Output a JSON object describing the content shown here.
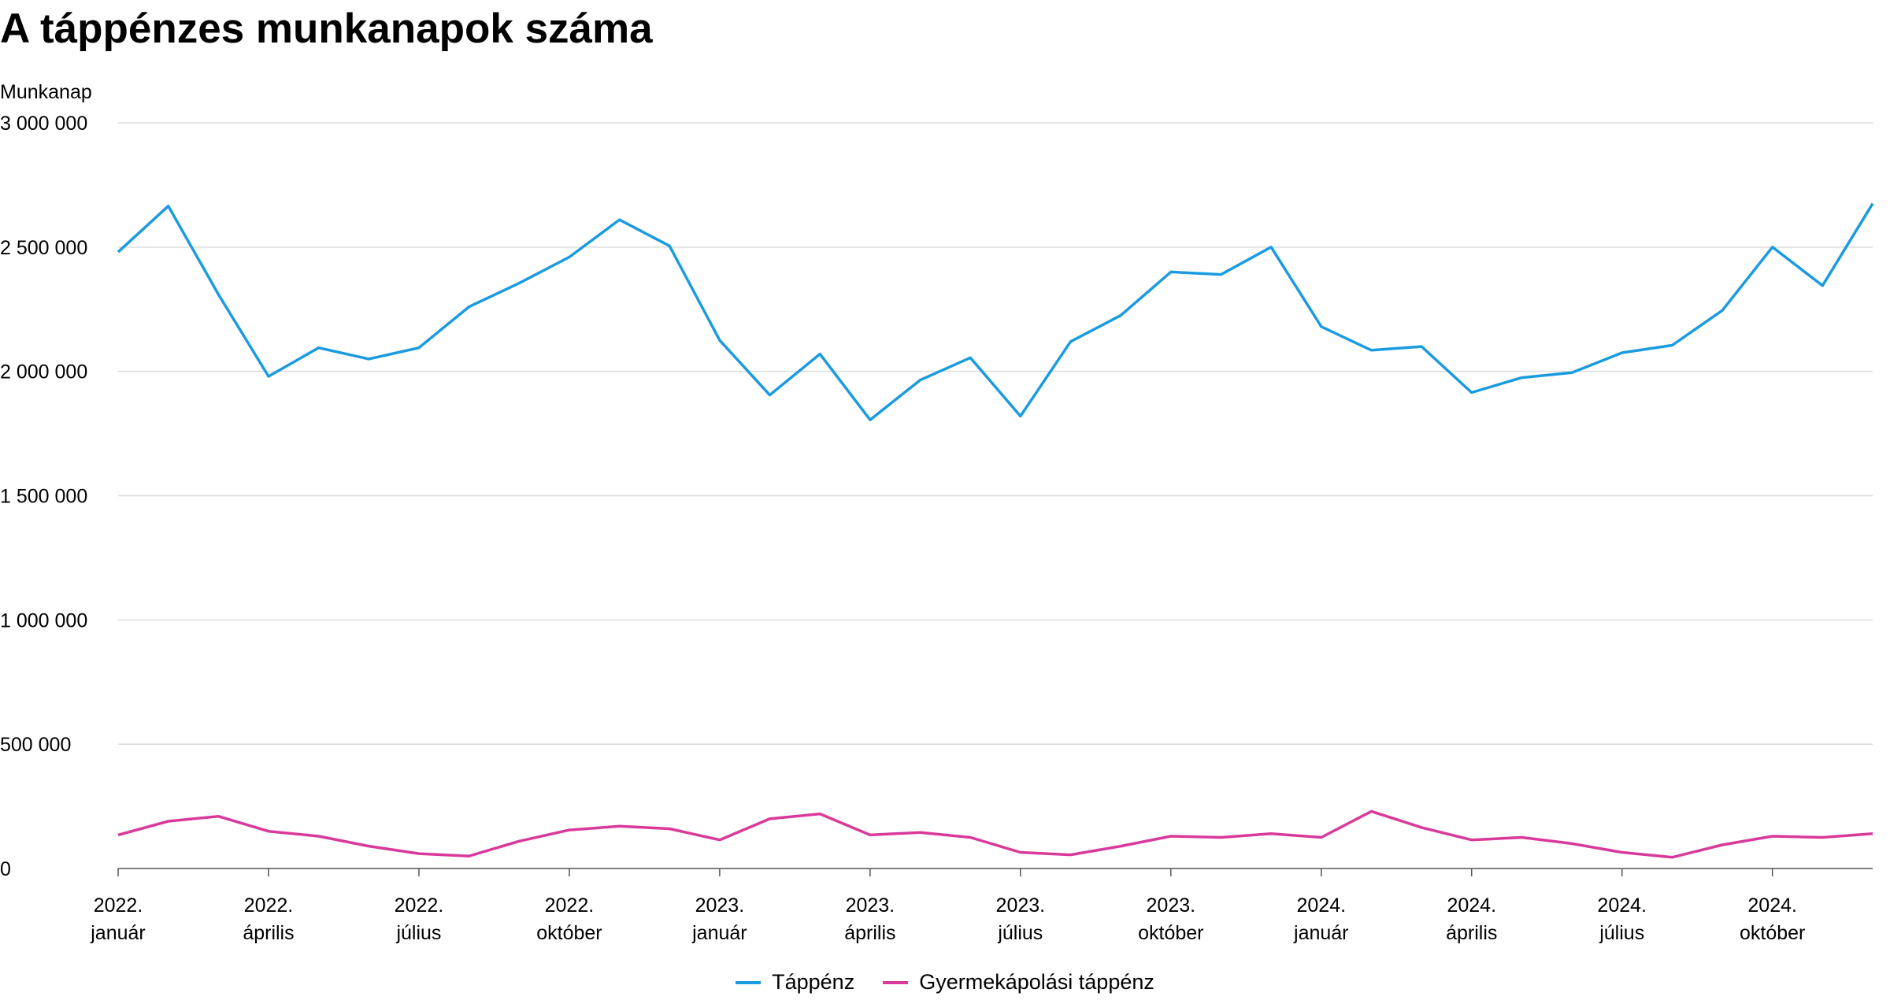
{
  "title": "A táppénzes munkanapok száma",
  "chart_data": {
    "type": "line",
    "title": "A táppénzes munkanapok száma",
    "ylabel": "Munkanap",
    "xlabel": "",
    "ylim": [
      0,
      3000000
    ],
    "yticks": [
      0,
      500000,
      1000000,
      1500000,
      2000000,
      2500000,
      3000000
    ],
    "ytick_labels": [
      "0",
      "500 000",
      "1 000 000",
      "1 500 000",
      "2 000 000",
      "2 500 000",
      "3 000 000"
    ],
    "x_tick_labels": [
      {
        "index": 0,
        "year": "2022.",
        "month": "január"
      },
      {
        "index": 3,
        "year": "2022.",
        "month": "április"
      },
      {
        "index": 6,
        "year": "2022.",
        "month": "július"
      },
      {
        "index": 9,
        "year": "2022.",
        "month": "október"
      },
      {
        "index": 12,
        "year": "2023.",
        "month": "január"
      },
      {
        "index": 15,
        "year": "2023.",
        "month": "április"
      },
      {
        "index": 18,
        "year": "2023.",
        "month": "július"
      },
      {
        "index": 21,
        "year": "2023.",
        "month": "október"
      },
      {
        "index": 24,
        "year": "2024.",
        "month": "január"
      },
      {
        "index": 27,
        "year": "2024.",
        "month": "április"
      },
      {
        "index": 30,
        "year": "2024.",
        "month": "július"
      },
      {
        "index": 33,
        "year": "2024.",
        "month": "október"
      }
    ],
    "num_points": 36,
    "grid": true,
    "legend_position": "bottom-center",
    "series": [
      {
        "name": "Táppénz",
        "color": "#1a9be0",
        "values": [
          2480000,
          2665000,
          2310000,
          1980000,
          2095000,
          2050000,
          2095000,
          2260000,
          2355000,
          2460000,
          2610000,
          2505000,
          2125000,
          1905000,
          2070000,
          1805000,
          1965000,
          2055000,
          1820000,
          2120000,
          2225000,
          2400000,
          2390000,
          2500000,
          2180000,
          2085000,
          2100000,
          1915000,
          1975000,
          1995000,
          2075000,
          2105000,
          2245000,
          2500000,
          2345000,
          2675000
        ]
      },
      {
        "name": "Gyermekápolási táppénz",
        "color": "#d93a9a",
        "values": [
          135000,
          190000,
          210000,
          150000,
          130000,
          90000,
          60000,
          50000,
          110000,
          155000,
          170000,
          160000,
          115000,
          200000,
          220000,
          135000,
          145000,
          125000,
          65000,
          55000,
          90000,
          130000,
          125000,
          140000,
          125000,
          230000,
          165000,
          115000,
          125000,
          100000,
          65000,
          45000,
          95000,
          130000,
          125000,
          140000
        ]
      }
    ]
  }
}
